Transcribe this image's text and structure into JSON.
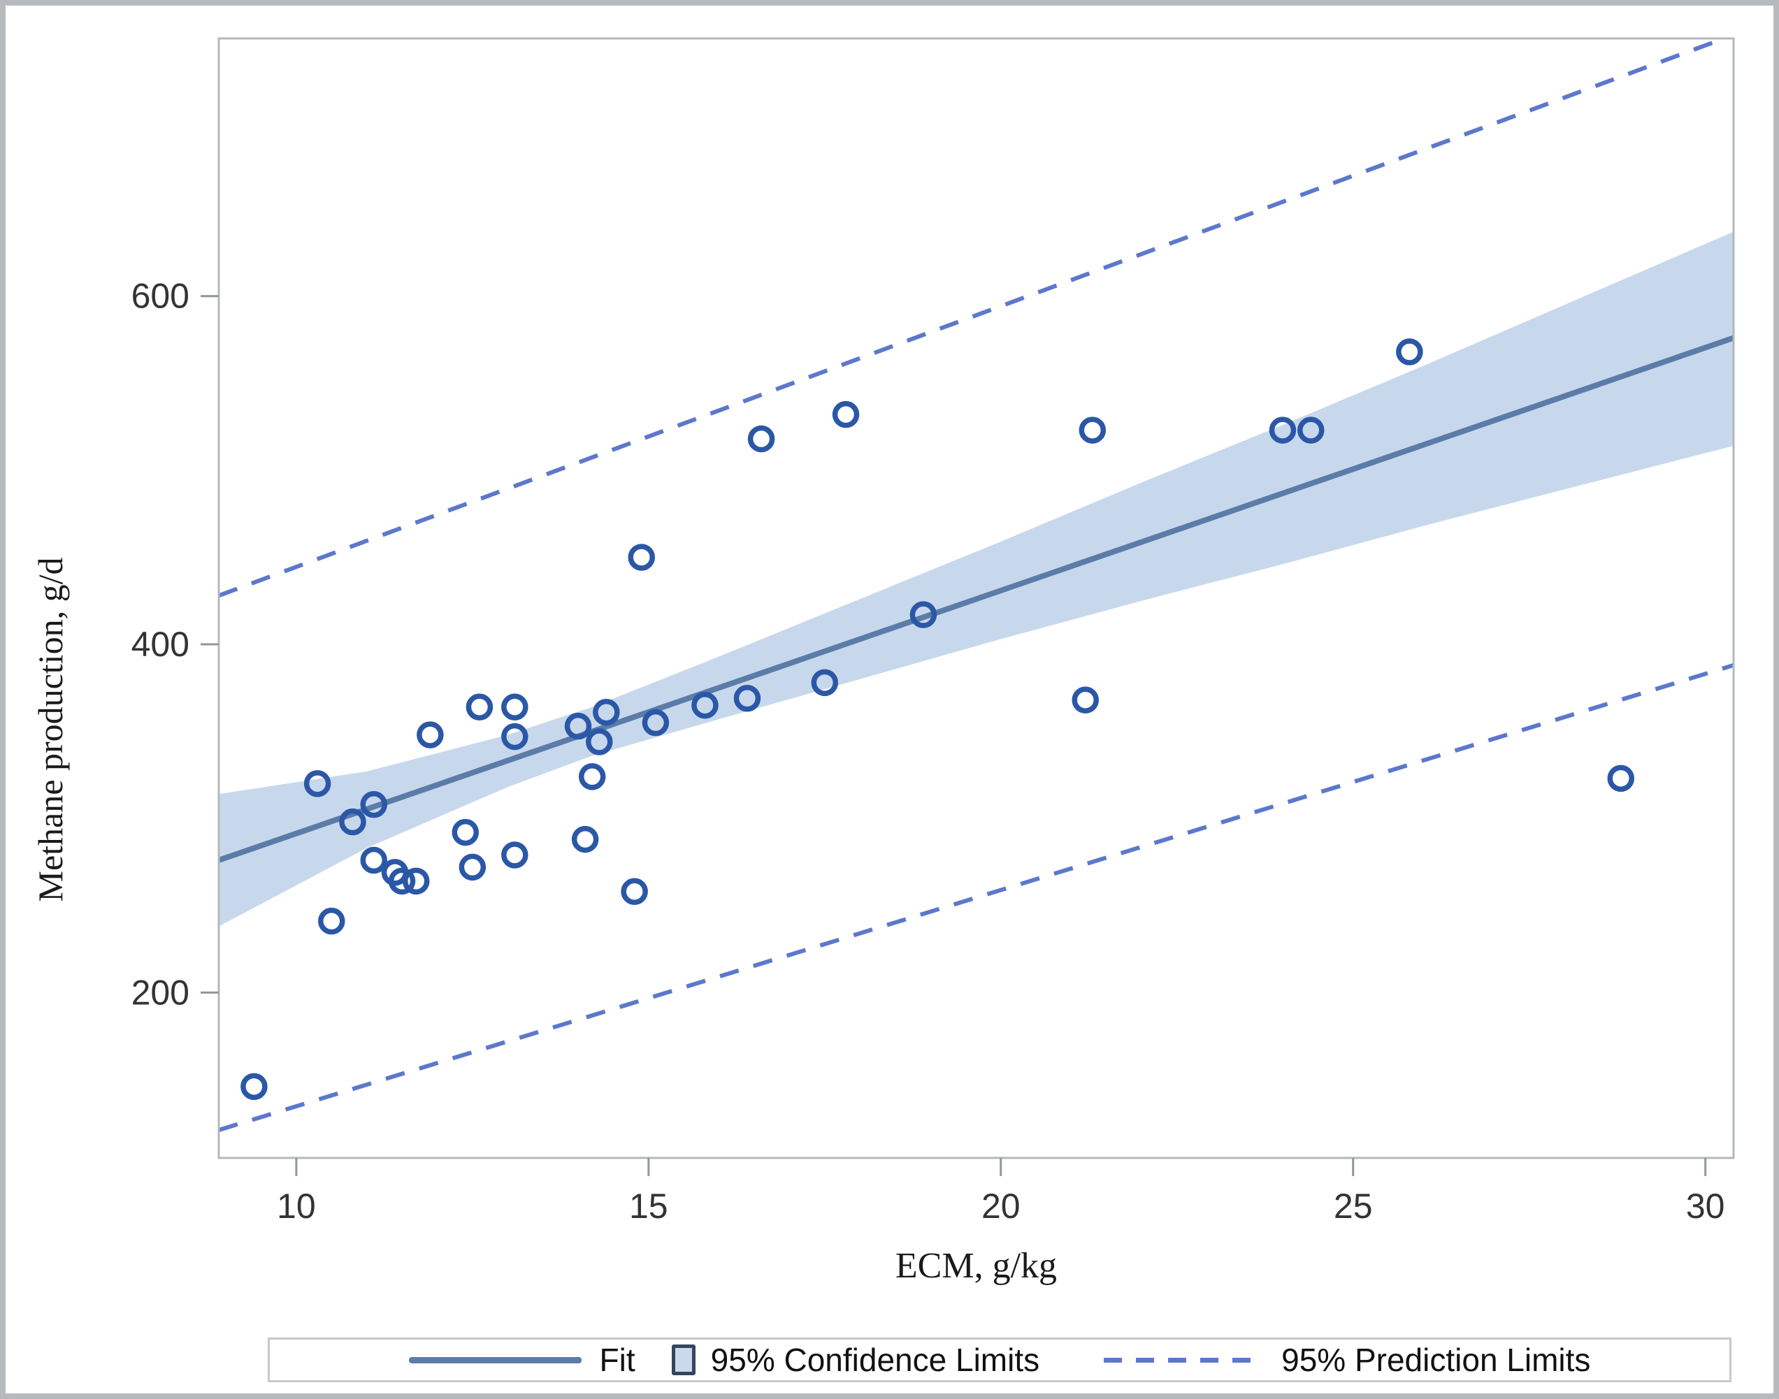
{
  "axes": {
    "x_title": "ECM, g/kg",
    "y_title": "Methane production, g/d"
  },
  "legend": {
    "items": [
      {
        "label": "Fit",
        "swatch": "line"
      },
      {
        "label": "95% Confidence Limits",
        "swatch": "box"
      },
      {
        "label": "95% Prediction Limits",
        "swatch": "dashed"
      }
    ]
  },
  "chart_data": {
    "type": "scatter",
    "title": "",
    "xlabel": "ECM, g/kg",
    "ylabel": "Methane production, g/d",
    "xlim": [
      8.9,
      30.4
    ],
    "ylim": [
      105,
      748
    ],
    "x_ticks": [
      10,
      15,
      20,
      25,
      30
    ],
    "y_ticks": [
      200,
      400,
      600
    ],
    "grid": false,
    "legend_position": "bottom",
    "points": [
      [
        9.4,
        146
      ],
      [
        10.3,
        320
      ],
      [
        10.5,
        241
      ],
      [
        10.8,
        298
      ],
      [
        11.1,
        308
      ],
      [
        11.1,
        276
      ],
      [
        11.4,
        269
      ],
      [
        11.5,
        264
      ],
      [
        11.7,
        264
      ],
      [
        11.9,
        348
      ],
      [
        12.4,
        292
      ],
      [
        12.5,
        272
      ],
      [
        12.6,
        364
      ],
      [
        13.1,
        364
      ],
      [
        13.1,
        347
      ],
      [
        13.1,
        279
      ],
      [
        14.0,
        353
      ],
      [
        14.1,
        288
      ],
      [
        14.2,
        324
      ],
      [
        14.3,
        344
      ],
      [
        14.4,
        361
      ],
      [
        14.8,
        258
      ],
      [
        14.9,
        450
      ],
      [
        15.1,
        355
      ],
      [
        15.8,
        365
      ],
      [
        16.4,
        369
      ],
      [
        16.6,
        518
      ],
      [
        17.5,
        378
      ],
      [
        17.8,
        532
      ],
      [
        18.9,
        417
      ],
      [
        21.2,
        368
      ],
      [
        21.3,
        523
      ],
      [
        24.0,
        523
      ],
      [
        24.4,
        523
      ],
      [
        25.8,
        568
      ],
      [
        28.8,
        323
      ]
    ],
    "fit_line": {
      "x": [
        8.9,
        30.4
      ],
      "y": [
        276,
        576
      ]
    },
    "confidence_band": [
      [
        8.9,
        238,
        314
      ],
      [
        11,
        283,
        327
      ],
      [
        13,
        318,
        348
      ],
      [
        14.2,
        336,
        364
      ],
      [
        16,
        357,
        393
      ],
      [
        18,
        380,
        426
      ],
      [
        20,
        403,
        459
      ],
      [
        22,
        425,
        493
      ],
      [
        24,
        446,
        526
      ],
      [
        26,
        468,
        560
      ],
      [
        28,
        489,
        595
      ],
      [
        30.4,
        514,
        637
      ]
    ],
    "prediction_limits": {
      "upper": {
        "x": [
          8.9,
          30.4
        ],
        "y": [
          428,
          750
        ]
      },
      "lower": {
        "x": [
          8.9,
          30.4
        ],
        "y": [
          121,
          388
        ]
      }
    },
    "colors": {
      "point": "#2b57a7",
      "fit": "#5b7ba8",
      "band": "#c8d8ec",
      "prediction": "#5c78cc",
      "plot_border": "#b3b8bc",
      "tick": "#8f979c",
      "tick_label": "#333333"
    }
  }
}
